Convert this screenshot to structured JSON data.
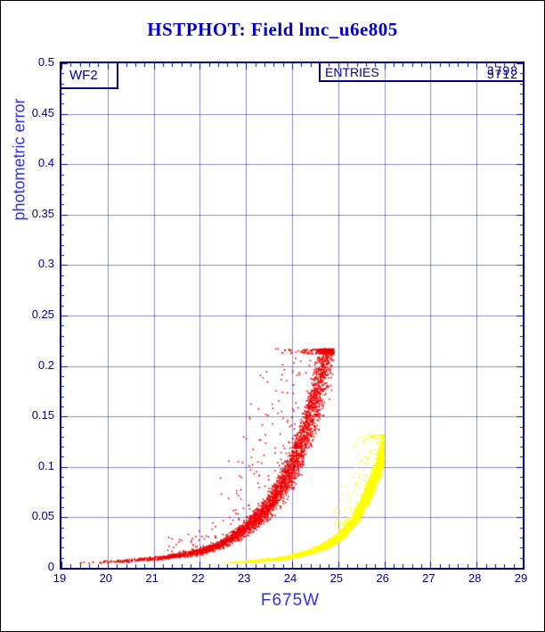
{
  "page": {
    "title": "HSTPHOT: Field lmc_u6e805"
  },
  "plot": {
    "detector_label": "WF2",
    "stats_box": {
      "label": "ENTRIES",
      "entries_value_1": "3798",
      "entries_value_2": "5712"
    },
    "xlabel": "F675W",
    "ylabel": "photometric error",
    "x_ticks": [
      "19",
      "20",
      "21",
      "22",
      "23",
      "24",
      "25",
      "26",
      "27",
      "28",
      "29"
    ],
    "y_ticks": [
      "0",
      "0.05",
      "0.1",
      "0.15",
      "0.2",
      "0.25",
      "0.3",
      "0.35",
      "0.4",
      "0.45",
      "0.5"
    ],
    "colors": {
      "axis": "#000080",
      "grid": "rgba(0,0,128,0.45)",
      "title": "#0000cd",
      "axis_label": "#3333cf",
      "background": "#ffffff"
    }
  },
  "chart_data": {
    "type": "scatter",
    "title": "HSTPHOT: Field lmc_u6e805",
    "xlabel": "F675W",
    "ylabel": "photometric error",
    "xlim": [
      19,
      29
    ],
    "ylim": [
      0,
      0.5
    ],
    "grid": true,
    "x_major_step": 1,
    "x_minor_step": 0.2,
    "y_major_step": 0.05,
    "y_minor_step": 0.01,
    "series": [
      {
        "name": "red-detections",
        "color": "#ee0000",
        "entries": 3798,
        "seed": 1234,
        "dot": 1.6,
        "m_range": [
          19.0,
          24.9
        ],
        "m_pow": 0.32,
        "trend": [
          [
            19,
            0.0045
          ],
          [
            20,
            0.006
          ],
          [
            21,
            0.009
          ],
          [
            21.8,
            0.014
          ],
          [
            22.5,
            0.024
          ],
          [
            23,
            0.04
          ],
          [
            23.5,
            0.062
          ],
          [
            24,
            0.1
          ],
          [
            24.4,
            0.15
          ],
          [
            24.75,
            0.215
          ],
          [
            24.9,
            0.25
          ]
        ],
        "noise": 0.1,
        "outlier_prob": 0.1,
        "outlier_min_m": 21.3,
        "outlier_scale": 3.2,
        "cap": 0.217
      },
      {
        "name": "yellow-detections",
        "color": "#ffff00",
        "entries": 5712,
        "seed": 777,
        "dot": 1.5,
        "m_range": [
          22.4,
          26.0
        ],
        "m_pow": 0.38,
        "trend": [
          [
            22.4,
            0.0045
          ],
          [
            23,
            0.006
          ],
          [
            23.8,
            0.0095
          ],
          [
            24.4,
            0.016
          ],
          [
            24.9,
            0.026
          ],
          [
            25.3,
            0.045
          ],
          [
            25.6,
            0.07
          ],
          [
            25.9,
            0.105
          ],
          [
            26.0,
            0.12
          ]
        ],
        "noise": 0.07,
        "outlier_prob": 0.05,
        "outlier_min_m": 24.9,
        "outlier_scale": 1.8,
        "cap": 0.132
      }
    ]
  }
}
